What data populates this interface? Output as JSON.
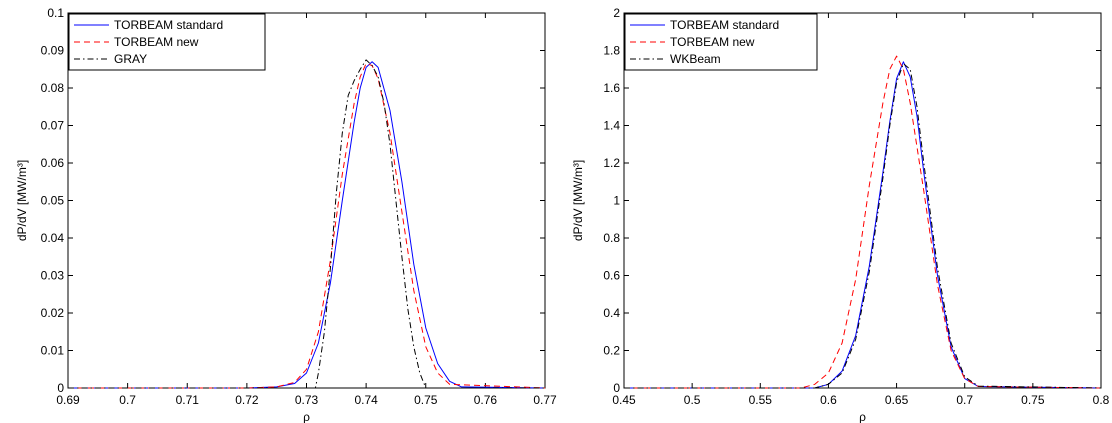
{
  "chart_data": [
    {
      "type": "line",
      "title": "",
      "xlabel": "ρ",
      "ylabel": "dP/dV [MW/m³]",
      "xlim": [
        0.69,
        0.77
      ],
      "ylim": [
        0,
        0.1
      ],
      "xticks": [
        0.69,
        0.7,
        0.71,
        0.72,
        0.73,
        0.74,
        0.75,
        0.76,
        0.77
      ],
      "yticks": [
        0,
        0.01,
        0.02,
        0.03,
        0.04,
        0.05,
        0.06,
        0.07,
        0.08,
        0.09,
        0.1
      ],
      "xtick_labels": [
        "0.69",
        "0.7",
        "0.71",
        "0.72",
        "0.73",
        "0.74",
        "0.75",
        "0.76",
        "0.77"
      ],
      "ytick_labels": [
        "0",
        "0.01",
        "0.02",
        "0.03",
        "0.04",
        "0.05",
        "0.06",
        "0.07",
        "0.08",
        "0.09",
        "0.1"
      ],
      "legend_position": "top-left",
      "series": [
        {
          "name": "TORBEAM standard",
          "color": "#0000ff",
          "dash": "solid",
          "x": [
            0.69,
            0.72,
            0.725,
            0.728,
            0.73,
            0.732,
            0.734,
            0.736,
            0.738,
            0.739,
            0.74,
            0.741,
            0.742,
            0.744,
            0.746,
            0.748,
            0.75,
            0.752,
            0.754,
            0.756,
            0.77
          ],
          "y": [
            0,
            0,
            0.0003,
            0.0012,
            0.004,
            0.012,
            0.028,
            0.05,
            0.071,
            0.08,
            0.0855,
            0.087,
            0.0855,
            0.074,
            0.055,
            0.033,
            0.016,
            0.0065,
            0.0018,
            0.0003,
            0
          ]
        },
        {
          "name": "TORBEAM new",
          "color": "#ff0000",
          "dash": "dashed",
          "x": [
            0.69,
            0.72,
            0.725,
            0.728,
            0.73,
            0.732,
            0.734,
            0.736,
            0.738,
            0.739,
            0.74,
            0.741,
            0.742,
            0.744,
            0.746,
            0.748,
            0.75,
            0.752,
            0.754,
            0.77
          ],
          "y": [
            0,
            0,
            0.0003,
            0.0015,
            0.005,
            0.015,
            0.034,
            0.057,
            0.076,
            0.083,
            0.0865,
            0.086,
            0.0825,
            0.068,
            0.047,
            0.026,
            0.011,
            0.004,
            0.001,
            0
          ]
        },
        {
          "name": "GRAY",
          "color": "#000000",
          "dash": "dashdot",
          "x": [
            0.69,
            0.7315,
            0.732,
            0.733,
            0.734,
            0.735,
            0.736,
            0.737,
            0.738,
            0.739,
            0.74,
            0.741,
            0.742,
            0.743,
            0.744,
            0.745,
            0.746,
            0.747,
            0.748,
            0.749,
            0.75,
            0.77
          ],
          "y": [
            0,
            0,
            0.004,
            0.015,
            0.032,
            0.052,
            0.068,
            0.078,
            0.082,
            0.085,
            0.0875,
            0.086,
            0.083,
            0.076,
            0.065,
            0.05,
            0.035,
            0.021,
            0.011,
            0.004,
            0,
            0
          ]
        }
      ]
    },
    {
      "type": "line",
      "title": "",
      "xlabel": "ρ",
      "ylabel": "dP/dV [MW/m³]",
      "xlim": [
        0.45,
        0.8
      ],
      "ylim": [
        0,
        2
      ],
      "xticks": [
        0.45,
        0.5,
        0.55,
        0.6,
        0.65,
        0.7,
        0.75,
        0.8
      ],
      "yticks": [
        0,
        0.2,
        0.4,
        0.6,
        0.8,
        1,
        1.2,
        1.4,
        1.6,
        1.8,
        2
      ],
      "xtick_labels": [
        "0.45",
        "0.5",
        "0.55",
        "0.6",
        "0.65",
        "0.7",
        "0.75",
        "0.8"
      ],
      "ytick_labels": [
        "0",
        "0.2",
        "0.4",
        "0.6",
        "0.8",
        "1",
        "1.2",
        "1.4",
        "1.6",
        "1.8",
        "2"
      ],
      "legend_position": "top-left",
      "series": [
        {
          "name": "TORBEAM standard",
          "color": "#0000ff",
          "dash": "solid",
          "x": [
            0.45,
            0.59,
            0.6,
            0.61,
            0.62,
            0.63,
            0.64,
            0.645,
            0.65,
            0.655,
            0.66,
            0.665,
            0.67,
            0.68,
            0.69,
            0.7,
            0.71,
            0.8
          ],
          "y": [
            0,
            0,
            0.02,
            0.09,
            0.28,
            0.65,
            1.15,
            1.42,
            1.65,
            1.74,
            1.66,
            1.45,
            1.15,
            0.6,
            0.22,
            0.05,
            0.008,
            0
          ]
        },
        {
          "name": "TORBEAM new",
          "color": "#ff0000",
          "dash": "dashed",
          "x": [
            0.45,
            0.58,
            0.59,
            0.6,
            0.61,
            0.62,
            0.63,
            0.64,
            0.645,
            0.65,
            0.655,
            0.66,
            0.67,
            0.68,
            0.69,
            0.7,
            0.71,
            0.8
          ],
          "y": [
            0,
            0,
            0.02,
            0.08,
            0.24,
            0.58,
            1.08,
            1.52,
            1.7,
            1.77,
            1.7,
            1.52,
            1.05,
            0.55,
            0.2,
            0.05,
            0.008,
            0
          ]
        },
        {
          "name": "WKBeam",
          "color": "#000000",
          "dash": "dashdot",
          "x": [
            0.45,
            0.59,
            0.6,
            0.61,
            0.62,
            0.63,
            0.64,
            0.645,
            0.65,
            0.655,
            0.66,
            0.665,
            0.67,
            0.68,
            0.69,
            0.7,
            0.71,
            0.8
          ],
          "y": [
            0,
            0,
            0.02,
            0.08,
            0.26,
            0.62,
            1.12,
            1.4,
            1.63,
            1.73,
            1.7,
            1.5,
            1.2,
            0.64,
            0.24,
            0.06,
            0.01,
            0
          ]
        }
      ]
    }
  ]
}
